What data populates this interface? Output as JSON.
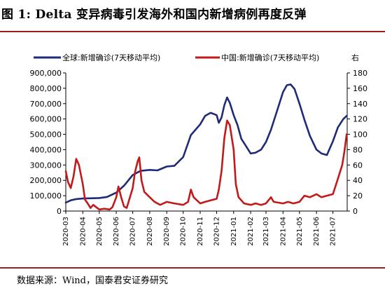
{
  "title": "图 1:  Delta 变异病毒引发海外和国内新增病例再度反弹",
  "source": "数据来源：Wind，国泰君安证券研究",
  "chart_data": {
    "type": "line",
    "x_ticks": [
      "2020-03",
      "2020-04",
      "2020-05",
      "2020-06",
      "2020-07",
      "2020-08",
      "2020-09",
      "2020-10",
      "2020-11",
      "2020-12",
      "2021-01",
      "2021-02",
      "2021-03",
      "2021-04",
      "2021-05",
      "2021-06",
      "2021-07"
    ],
    "left_axis": {
      "ylim": [
        0,
        900000
      ],
      "ticks": [
        "0",
        "100,000",
        "200,000",
        "300,000",
        "400,000",
        "500,000",
        "600,000",
        "700,000",
        "800,000",
        "900,000"
      ]
    },
    "right_axis": {
      "ylim": [
        0,
        180
      ],
      "ticks": [
        "0",
        "20",
        "40",
        "60",
        "80",
        "100",
        "120",
        "140",
        "160",
        "180"
      ]
    },
    "legend_placement": "top",
    "right_axis_note": "右",
    "series": [
      {
        "name": "全球:新增确诊(7天移动平均)",
        "axis": "left",
        "color": "#1f2a78",
        "points": [
          [
            "2020-03-01",
            55000
          ],
          [
            "2020-03-10",
            70000
          ],
          [
            "2020-03-20",
            78000
          ],
          [
            "2020-04-01",
            82000
          ],
          [
            "2020-04-15",
            83000
          ],
          [
            "2020-05-01",
            85000
          ],
          [
            "2020-05-15",
            92000
          ],
          [
            "2020-06-01",
            120000
          ],
          [
            "2020-06-15",
            165000
          ],
          [
            "2020-07-01",
            235000
          ],
          [
            "2020-07-15",
            262000
          ],
          [
            "2020-08-01",
            268000
          ],
          [
            "2020-08-15",
            265000
          ],
          [
            "2020-09-01",
            290000
          ],
          [
            "2020-09-15",
            295000
          ],
          [
            "2020-10-01",
            352000
          ],
          [
            "2020-10-15",
            495000
          ],
          [
            "2020-11-01",
            565000
          ],
          [
            "2020-11-10",
            620000
          ],
          [
            "2020-11-20",
            640000
          ],
          [
            "2020-12-01",
            625000
          ],
          [
            "2020-12-05",
            575000
          ],
          [
            "2020-12-10",
            610000
          ],
          [
            "2020-12-15",
            690000
          ],
          [
            "2020-12-20",
            740000
          ],
          [
            "2020-12-25",
            705000
          ],
          [
            "2021-01-01",
            625000
          ],
          [
            "2021-01-08",
            560000
          ],
          [
            "2021-01-15",
            470000
          ],
          [
            "2021-01-25",
            415000
          ],
          [
            "2021-02-01",
            375000
          ],
          [
            "2021-02-10",
            380000
          ],
          [
            "2021-02-20",
            400000
          ],
          [
            "2021-03-01",
            450000
          ],
          [
            "2021-03-10",
            530000
          ],
          [
            "2021-03-20",
            640000
          ],
          [
            "2021-04-01",
            775000
          ],
          [
            "2021-04-08",
            820000
          ],
          [
            "2021-04-15",
            825000
          ],
          [
            "2021-04-22",
            795000
          ],
          [
            "2021-05-01",
            700000
          ],
          [
            "2021-05-10",
            595000
          ],
          [
            "2021-05-20",
            490000
          ],
          [
            "2021-06-01",
            400000
          ],
          [
            "2021-06-10",
            375000
          ],
          [
            "2021-06-20",
            365000
          ],
          [
            "2021-07-01",
            455000
          ],
          [
            "2021-07-10",
            545000
          ],
          [
            "2021-07-20",
            600000
          ],
          [
            "2021-07-26",
            620000
          ]
        ]
      },
      {
        "name": "中国:新增确诊(7天移动平均)",
        "axis": "right",
        "color": "#c11a1a",
        "points": [
          [
            "2020-03-01",
            52
          ],
          [
            "2020-03-05",
            38
          ],
          [
            "2020-03-10",
            30
          ],
          [
            "2020-03-15",
            45
          ],
          [
            "2020-03-20",
            68
          ],
          [
            "2020-03-25",
            60
          ],
          [
            "2020-04-01",
            35
          ],
          [
            "2020-04-05",
            15
          ],
          [
            "2020-04-10",
            10
          ],
          [
            "2020-04-15",
            4
          ],
          [
            "2020-04-20",
            8
          ],
          [
            "2020-05-01",
            2
          ],
          [
            "2020-05-10",
            3
          ],
          [
            "2020-05-20",
            2
          ],
          [
            "2020-05-25",
            5
          ],
          [
            "2020-06-01",
            18
          ],
          [
            "2020-06-05",
            32
          ],
          [
            "2020-06-10",
            18
          ],
          [
            "2020-06-15",
            6
          ],
          [
            "2020-06-20",
            4
          ],
          [
            "2020-07-01",
            30
          ],
          [
            "2020-07-05",
            50
          ],
          [
            "2020-07-10",
            65
          ],
          [
            "2020-07-13",
            70
          ],
          [
            "2020-07-17",
            40
          ],
          [
            "2020-07-22",
            25
          ],
          [
            "2020-08-01",
            18
          ],
          [
            "2020-08-10",
            12
          ],
          [
            "2020-08-20",
            8
          ],
          [
            "2020-09-01",
            12
          ],
          [
            "2020-09-15",
            10
          ],
          [
            "2020-10-01",
            8
          ],
          [
            "2020-10-10",
            12
          ],
          [
            "2020-10-15",
            28
          ],
          [
            "2020-10-20",
            18
          ],
          [
            "2020-11-01",
            10
          ],
          [
            "2020-11-10",
            12
          ],
          [
            "2020-11-20",
            14
          ],
          [
            "2020-12-01",
            16
          ],
          [
            "2020-12-05",
            28
          ],
          [
            "2020-12-10",
            52
          ],
          [
            "2020-12-15",
            95
          ],
          [
            "2020-12-20",
            118
          ],
          [
            "2020-12-25",
            112
          ],
          [
            "2021-01-01",
            80
          ],
          [
            "2021-01-05",
            35
          ],
          [
            "2021-01-10",
            18
          ],
          [
            "2021-01-20",
            10
          ],
          [
            "2021-02-01",
            8
          ],
          [
            "2021-02-10",
            10
          ],
          [
            "2021-02-20",
            8
          ],
          [
            "2021-03-01",
            10
          ],
          [
            "2021-03-10",
            18
          ],
          [
            "2021-03-15",
            12
          ],
          [
            "2021-04-01",
            10
          ],
          [
            "2021-04-10",
            12
          ],
          [
            "2021-04-20",
            10
          ],
          [
            "2021-05-01",
            12
          ],
          [
            "2021-05-10",
            20
          ],
          [
            "2021-05-20",
            18
          ],
          [
            "2021-06-01",
            22
          ],
          [
            "2021-06-10",
            18
          ],
          [
            "2021-06-20",
            20
          ],
          [
            "2021-07-01",
            22
          ],
          [
            "2021-07-10",
            42
          ],
          [
            "2021-07-18",
            60
          ],
          [
            "2021-07-22",
            78
          ],
          [
            "2021-07-26",
            100
          ]
        ]
      }
    ]
  }
}
